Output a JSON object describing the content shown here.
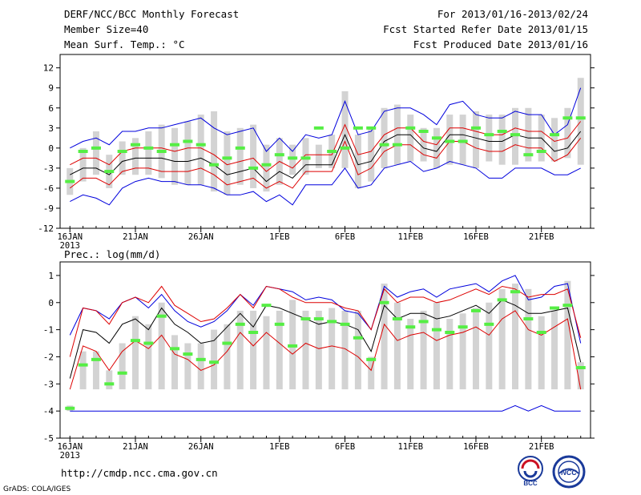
{
  "header": {
    "title": "DERF/NCC/BCC Monthly Forecast",
    "member_size": "Member Size=40",
    "variable": "Mean Surf. Temp.: °C",
    "forecast_for": "For 2013/01/16-2013/02/24",
    "started": "Fcst Started Refer Date 2013/01/15",
    "produced": "Fcst Produced Date 2013/01/16"
  },
  "footer": {
    "url": "http://cmdp.ncc.cma.gov.cn",
    "credit": "GrADS: COLA/IGES",
    "logo_bcc": "BCC",
    "logo_ncc": "NCC"
  },
  "colors": {
    "box": "#d3d3d3",
    "median": "#55ee44",
    "mean": "#000000",
    "inner": "#dd0000",
    "outer": "#0000dd"
  },
  "chart_data": [
    {
      "type": "box-ensemble",
      "title": "Mean Surf. Temp.: °C",
      "ylabel": "°C",
      "ylim": [
        -12,
        14
      ],
      "yticks": [
        12,
        9,
        6,
        3,
        0,
        -3,
        -6,
        -9,
        -12
      ],
      "xtick_labels": [
        "16JAN",
        "21JAN",
        "26JAN",
        "1FEB",
        "6FEB",
        "11FEB",
        "16FEB",
        "21FEB"
      ],
      "xtick_day_index": [
        0,
        5,
        10,
        16,
        21,
        26,
        31,
        36
      ],
      "year_label": "2013",
      "days": 40,
      "box_low": [
        -7,
        -5,
        -4,
        -6,
        -4,
        -4,
        -4,
        -4.5,
        -5.5,
        -5.5,
        -5.5,
        -6.5,
        -7,
        -5.5,
        -6,
        -6.5,
        -5.5,
        -4,
        -4,
        -3,
        -3,
        -3,
        -6,
        -5,
        -3,
        -2.5,
        -2,
        -2,
        -3,
        -2.5,
        -2.5,
        -3,
        -2,
        -2.5,
        -2.5,
        -2,
        -2,
        -2,
        -1.5,
        -2.5
      ],
      "box_high": [
        -3,
        0,
        2.5,
        -1,
        1,
        1.5,
        2.5,
        3.5,
        3,
        4,
        5,
        5.5,
        2.5,
        3,
        3.5,
        0.5,
        1.5,
        0.5,
        1.5,
        0.5,
        2,
        8.5,
        2,
        3,
        6,
        6.5,
        5,
        3,
        3,
        5,
        5,
        5.5,
        5,
        5,
        6,
        6,
        5,
        4.5,
        6,
        10.5
      ],
      "median": [
        -5,
        -0.5,
        0,
        -3.5,
        -0.5,
        0.5,
        0,
        -0.5,
        0.5,
        1,
        0.5,
        -2.5,
        -1.5,
        0,
        -3,
        -2.5,
        -1,
        -1.5,
        -1.5,
        3,
        -0.5,
        0,
        3,
        3,
        0.5,
        0.5,
        3,
        2.5,
        1.5,
        1,
        1,
        3,
        2,
        2.5,
        2,
        -1,
        -0.5,
        2,
        4.5,
        4.5
      ],
      "mean": [
        -4,
        -3,
        -3,
        -4,
        -2,
        -1.5,
        -1.5,
        -1.5,
        -2,
        -2,
        -1.5,
        -2.5,
        -4,
        -3.5,
        -3,
        -5,
        -3.5,
        -4.5,
        -2.5,
        -2.5,
        -2.5,
        2,
        -2.5,
        -2,
        1,
        2,
        2,
        0,
        -0.5,
        2,
        2,
        1.5,
        1,
        1,
        2,
        1.5,
        1.5,
        -0.5,
        0,
        2.5
      ],
      "inner_low": [
        -6,
        -4.5,
        -4.5,
        -5.5,
        -3.5,
        -3,
        -3,
        -3.5,
        -3.5,
        -3.5,
        -3,
        -4,
        -5.5,
        -5,
        -4.5,
        -6,
        -5,
        -6,
        -3.5,
        -3.5,
        -3.5,
        1,
        -4,
        -3,
        -0.5,
        0.5,
        0.5,
        -1,
        -1.5,
        1,
        1,
        0,
        -0.5,
        -0.5,
        0.5,
        0,
        0,
        -2,
        -1,
        1.5
      ],
      "inner_high": [
        -2.5,
        -1.5,
        -1.5,
        -2.5,
        -0.5,
        0,
        0,
        0,
        -0.5,
        0,
        0,
        -1,
        -2.5,
        -2,
        -1.5,
        -3.5,
        -2,
        -3,
        -1,
        -1,
        -1,
        3.5,
        -1,
        -0.5,
        2,
        3,
        3,
        1,
        0.5,
        3,
        3,
        2.5,
        2,
        2,
        3,
        2.5,
        2.5,
        1,
        1.5,
        4
      ],
      "outer_low": [
        -8,
        -7,
        -7.5,
        -8.5,
        -6,
        -5,
        -4.5,
        -5,
        -5,
        -5.5,
        -5.5,
        -6,
        -7,
        -7,
        -6.5,
        -8,
        -7,
        -8.5,
        -5.5,
        -5.5,
        -5.5,
        -3,
        -6,
        -5.5,
        -3,
        -2.5,
        -2,
        -3.5,
        -3,
        -2,
        -2.5,
        -3,
        -4.5,
        -4.5,
        -3,
        -3,
        -3,
        -4,
        -4,
        -3
      ],
      "outer_high": [
        0,
        1,
        1.5,
        0.5,
        2.5,
        2.5,
        3,
        3,
        3.5,
        4,
        4.5,
        3,
        2,
        2.5,
        3,
        -0.5,
        1.5,
        -0.5,
        2,
        1.5,
        2,
        7,
        2,
        2.5,
        5.5,
        6,
        6,
        5,
        3.5,
        6.5,
        7,
        5,
        4.5,
        4.5,
        5.5,
        5,
        5,
        2,
        3.5,
        9
      ]
    },
    {
      "type": "box-ensemble",
      "title": "Prec.: log(mm/d)",
      "ylabel": "log(mm/d)",
      "ylim": [
        -5,
        1.5
      ],
      "yticks": [
        1,
        0,
        -1,
        -2,
        -3,
        -4,
        -5
      ],
      "xtick_labels": [
        "16JAN",
        "21JAN",
        "26JAN",
        "1FEB",
        "6FEB",
        "11FEB",
        "16FEB",
        "21FEB"
      ],
      "xtick_day_index": [
        0,
        5,
        10,
        16,
        21,
        26,
        31,
        36
      ],
      "year_label": "2013",
      "days": 40,
      "box_low": [
        -4,
        -3.2,
        -3.2,
        -3.2,
        -3.2,
        -3.2,
        -3.2,
        -3.2,
        -3.2,
        -3.2,
        -3.2,
        -3.2,
        -3.2,
        -3.2,
        -3.2,
        -3.2,
        -3.2,
        -3.2,
        -3.2,
        -3.2,
        -3.2,
        -3.2,
        -3.2,
        -3.2,
        -3.2,
        -3.2,
        -3.2,
        -3.2,
        -3.2,
        -3.2,
        -3.2,
        -3.2,
        -3.2,
        -3.2,
        -3.2,
        -3.2,
        -3.2,
        -3.2,
        -3.2,
        -3.2
      ],
      "box_high": [
        -3.8,
        -1.8,
        -1.8,
        -2.5,
        -1.5,
        -0.5,
        -0.8,
        0,
        -1.2,
        -1.5,
        -1.5,
        -1,
        -0.8,
        -0.3,
        -0.3,
        -0.5,
        -0.3,
        0.1,
        -0.3,
        -0.3,
        -0.2,
        -0.3,
        -0.3,
        -2,
        0.7,
        0,
        -0.6,
        -0.3,
        0,
        -0.6,
        -0.4,
        -0.2,
        0,
        0.5,
        0.7,
        0.5,
        -0.5,
        -0.3,
        0.8,
        -2.2
      ],
      "median": [
        -3.9,
        -2.3,
        -2.1,
        -3,
        -2.6,
        -1.4,
        -1.5,
        -0.5,
        -1.7,
        -1.9,
        -2.1,
        -2.2,
        -1.5,
        -0.8,
        -1.1,
        -0.1,
        -0.8,
        -1.6,
        -0.6,
        -0.6,
        -0.7,
        -0.8,
        -1.3,
        -2.1,
        0,
        -0.6,
        -0.9,
        -0.7,
        -1,
        -1.1,
        -0.9,
        -0.3,
        -0.8,
        0.1,
        0.4,
        -0.6,
        -1.1,
        -0.2,
        -0.1,
        -2.4
      ],
      "mean": [
        -2.8,
        -1,
        -1.1,
        -1.5,
        -0.8,
        -0.6,
        -1,
        -0.2,
        -0.8,
        -1.1,
        -1.5,
        -1.4,
        -0.9,
        -0.4,
        -0.9,
        -0.1,
        -0.2,
        -0.4,
        -0.6,
        -0.8,
        -0.7,
        -0.8,
        -1,
        -1.8,
        -0.1,
        -0.6,
        -0.4,
        -0.4,
        -0.6,
        -0.5,
        -0.3,
        -0.1,
        -0.4,
        0.1,
        -0.1,
        -0.4,
        -0.4,
        -0.3,
        -0.2,
        -2.2
      ],
      "inner_low": [
        -3.2,
        -1.6,
        -1.8,
        -2.5,
        -1.8,
        -1.4,
        -1.7,
        -1.2,
        -1.9,
        -2.1,
        -2.5,
        -2.3,
        -1.8,
        -1.1,
        -1.6,
        -1.1,
        -1.5,
        -1.9,
        -1.5,
        -1.7,
        -1.6,
        -1.7,
        -2,
        -2.5,
        -0.8,
        -1.4,
        -1.2,
        -1.1,
        -1.4,
        -1.2,
        -1.1,
        -0.9,
        -1.2,
        -0.6,
        -0.3,
        -1,
        -1.2,
        -0.9,
        -0.6,
        -3.2
      ],
      "inner_high": [
        -2,
        -0.2,
        -0.3,
        -0.8,
        0,
        0.2,
        0,
        0.6,
        -0.1,
        -0.4,
        -0.7,
        -0.6,
        -0.2,
        0.3,
        -0.2,
        0.6,
        0.5,
        0.2,
        0,
        0,
        0,
        -0.2,
        -0.3,
        -1,
        0.5,
        0,
        0.2,
        0.2,
        0,
        0.1,
        0.3,
        0.5,
        0.3,
        0.6,
        0.5,
        0.2,
        0.3,
        0.3,
        0.5,
        -1.3
      ],
      "outer_low": [
        -4,
        -4,
        -4,
        -4,
        -4,
        -4,
        -4,
        -4,
        -4,
        -4,
        -4,
        -4,
        -4,
        -4,
        -4,
        -4,
        -4,
        -4,
        -4,
        -4,
        -4,
        -4,
        -4,
        -4,
        -4,
        -4,
        -4,
        -4,
        -4,
        -4,
        -4,
        -4,
        -4,
        -4,
        -3.8,
        -4,
        -3.8,
        -4,
        -4,
        -4
      ],
      "outer_high": [
        -1.2,
        -0.2,
        -0.3,
        -0.6,
        0,
        0.2,
        -0.2,
        0.3,
        -0.3,
        -0.7,
        -0.9,
        -0.7,
        -0.3,
        0.3,
        -0.1,
        0.6,
        0.5,
        0.4,
        0.1,
        0.2,
        0.1,
        -0.3,
        -0.4,
        -1,
        0.6,
        0.2,
        0.4,
        0.5,
        0.2,
        0.5,
        0.6,
        0.7,
        0.4,
        0.8,
        1,
        0.1,
        0.2,
        0.6,
        0.7,
        -1.5
      ]
    }
  ]
}
